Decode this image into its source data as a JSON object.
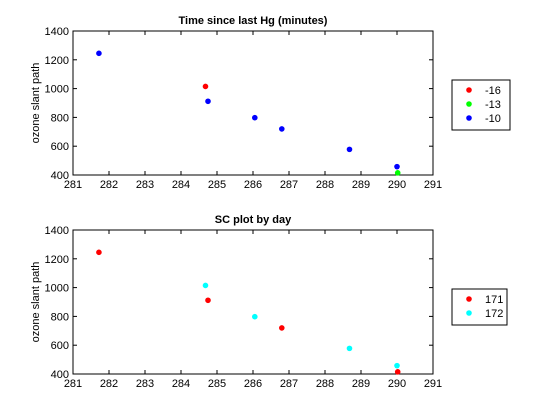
{
  "chart_data": [
    {
      "type": "scatter",
      "title": "Time since last Hg (minutes)",
      "xlabel": "",
      "ylabel": "ozone slant path",
      "xlim": [
        281,
        291
      ],
      "ylim": [
        400,
        1400
      ],
      "xticks": [
        281,
        282,
        283,
        284,
        285,
        286,
        287,
        288,
        289,
        290,
        291
      ],
      "yticks": [
        400,
        600,
        800,
        1000,
        1200,
        1400
      ],
      "legend_position": "right",
      "series": [
        {
          "name": "-16",
          "color": "#ff0000",
          "points": [
            [
              284.68,
              1015
            ]
          ]
        },
        {
          "name": "-13",
          "color": "#00ff00",
          "points": [
            [
              290.02,
              415
            ]
          ]
        },
        {
          "name": "-10",
          "color": "#0000ff",
          "points": [
            [
              281.72,
              1245
            ],
            [
              284.75,
              912
            ],
            [
              286.05,
              798
            ],
            [
              286.8,
              720
            ],
            [
              288.68,
              578
            ],
            [
              290.0,
              458
            ]
          ]
        }
      ]
    },
    {
      "type": "scatter",
      "title": "SC plot by day",
      "xlabel": "",
      "ylabel": "ozone slant path",
      "xlim": [
        281,
        291
      ],
      "ylim": [
        400,
        1400
      ],
      "xticks": [
        281,
        282,
        283,
        284,
        285,
        286,
        287,
        288,
        289,
        290,
        291
      ],
      "yticks": [
        400,
        600,
        800,
        1000,
        1200,
        1400
      ],
      "legend_position": "right",
      "series": [
        {
          "name": "171",
          "color": "#ff0000",
          "points": [
            [
              281.72,
              1245
            ],
            [
              284.75,
              912
            ],
            [
              286.8,
              720
            ],
            [
              290.02,
              415
            ]
          ]
        },
        {
          "name": "172",
          "color": "#00ffff",
          "points": [
            [
              284.68,
              1015
            ],
            [
              286.05,
              798
            ],
            [
              288.68,
              578
            ],
            [
              290.0,
              458
            ]
          ]
        }
      ]
    }
  ]
}
